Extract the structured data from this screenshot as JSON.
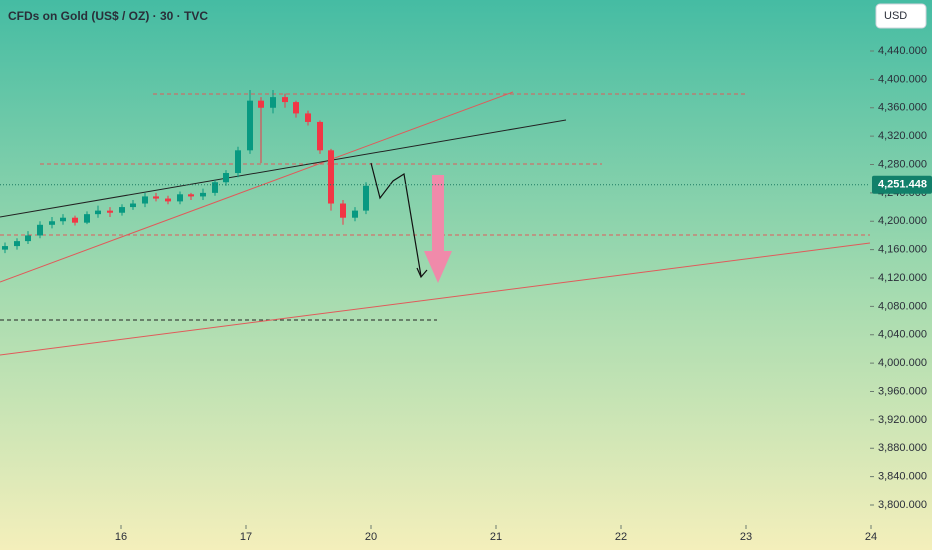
{
  "chart_data": {
    "type": "candlestick",
    "title": "CFDs on Gold (US$ / OZ) · 30 · TVC",
    "currency": "USD",
    "up_color": "#089981",
    "down_color": "#f23645",
    "x": [
      0.072,
      0.168,
      0.256,
      0.352,
      0.448,
      0.536,
      0.632,
      0.728,
      0.816,
      0.912,
      1.008,
      1.096,
      1.192,
      1.28,
      1.376,
      1.472,
      1.56,
      1.656,
      1.752,
      1.84,
      1.936,
      2.032,
      2.12,
      2.216,
      2.312,
      2.4,
      2.496,
      2.592,
      2.68,
      2.776,
      2.872,
      2.96
    ],
    "open": [
      4160,
      4165,
      4172,
      4180,
      4195,
      4200,
      4205,
      4198,
      4210,
      4215,
      4212,
      4220,
      4225,
      4235,
      4232,
      4228,
      4238,
      4235,
      4240,
      4255,
      4268,
      4300,
      4370,
      4360,
      4375,
      4368,
      4352,
      4340,
      4300,
      4225,
      4205,
      4215
    ],
    "high": [
      4170,
      4176,
      4186,
      4200,
      4206,
      4210,
      4208,
      4214,
      4222,
      4220,
      4224,
      4230,
      4240,
      4240,
      4236,
      4242,
      4240,
      4246,
      4258,
      4272,
      4305,
      4385,
      4375,
      4385,
      4380,
      4370,
      4356,
      4342,
      4302,
      4230,
      4220,
      4255
    ],
    "low": [
      4155,
      4160,
      4168,
      4176,
      4190,
      4195,
      4194,
      4196,
      4205,
      4206,
      4208,
      4216,
      4220,
      4228,
      4224,
      4224,
      4230,
      4230,
      4236,
      4250,
      4262,
      4295,
      4282,
      4352,
      4360,
      4346,
      4335,
      4295,
      4215,
      4195,
      4200,
      4210
    ],
    "close": [
      4165,
      4172,
      4180,
      4195,
      4200,
      4205,
      4198,
      4210,
      4215,
      4212,
      4220,
      4225,
      4235,
      4232,
      4228,
      4238,
      4235,
      4240,
      4255,
      4268,
      4300,
      4370,
      4360,
      4375,
      4368,
      4352,
      4340,
      4300,
      4225,
      4205,
      4215,
      4250
    ],
    "last_price": {
      "value": 4251.448,
      "label": "4,251.448"
    },
    "xlim": [
      0.032,
      6.992
    ],
    "xticks": [
      {
        "value": 1,
        "label": "16"
      },
      {
        "value": 2,
        "label": "17"
      },
      {
        "value": 3,
        "label": "20"
      },
      {
        "value": 4,
        "label": "21"
      },
      {
        "value": 5,
        "label": "22"
      },
      {
        "value": 6,
        "label": "23"
      },
      {
        "value": 7,
        "label": "24"
      }
    ],
    "ylim": [
      3771.8,
      4511.9
    ],
    "yticks": [
      {
        "value": 3800,
        "label": "3,800.000"
      },
      {
        "value": 3840,
        "label": "3,840.000"
      },
      {
        "value": 3880,
        "label": "3,880.000"
      },
      {
        "value": 3920,
        "label": "3,920.000"
      },
      {
        "value": 3960,
        "label": "3,960.000"
      },
      {
        "value": 4000,
        "label": "4,000.000"
      },
      {
        "value": 4040,
        "label": "4,040.000"
      },
      {
        "value": 4080,
        "label": "4,080.000"
      },
      {
        "value": 4120,
        "label": "4,120.000"
      },
      {
        "value": 4160,
        "label": "4,160.000"
      },
      {
        "value": 4200,
        "label": "4,200.000"
      },
      {
        "value": 4240,
        "label": "4,240.000"
      },
      {
        "value": 4280,
        "label": "4,280.000"
      },
      {
        "value": 4320,
        "label": "4,320.000"
      },
      {
        "value": 4360,
        "label": "4,360.000"
      },
      {
        "value": 4400,
        "label": "4,400.000"
      },
      {
        "value": 4440,
        "label": "4,440.000"
      }
    ]
  }
}
